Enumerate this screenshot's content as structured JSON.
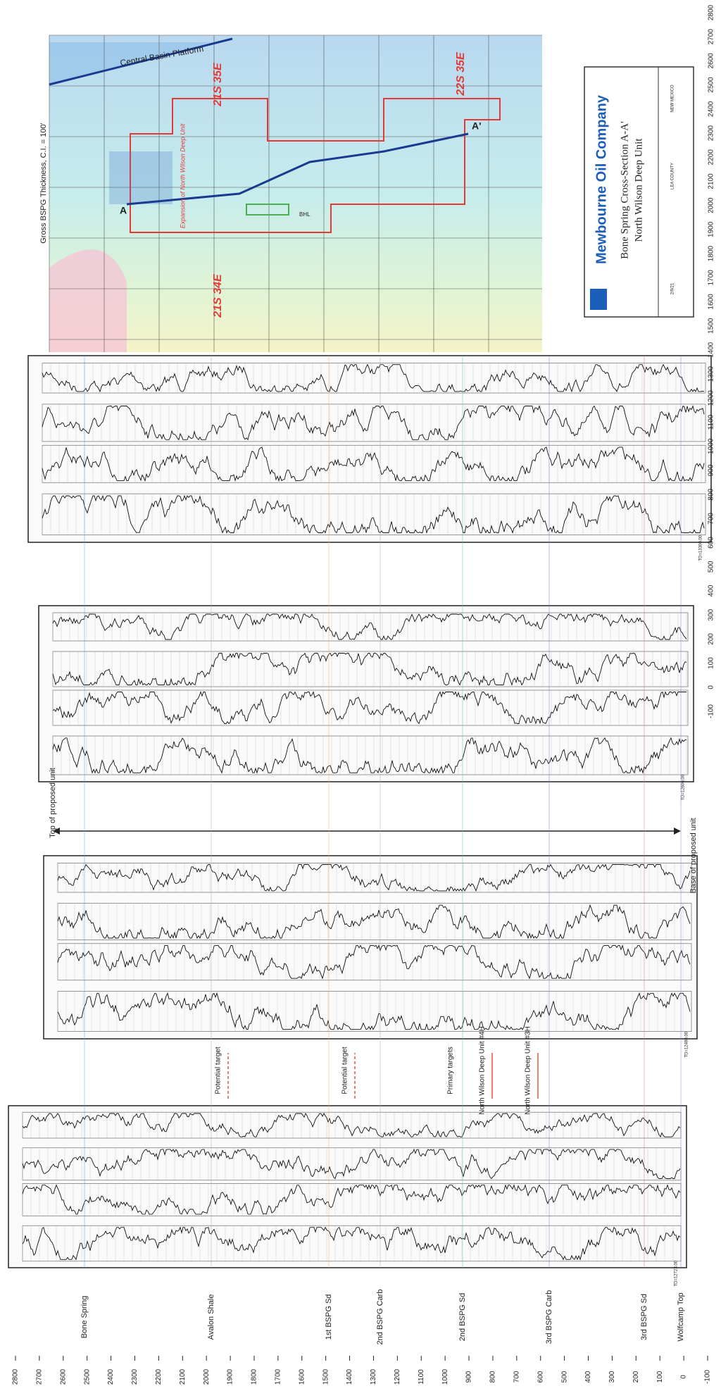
{
  "depth_scale": [
    2800,
    2700,
    2600,
    2500,
    2400,
    2300,
    2200,
    2100,
    2000,
    1900,
    1800,
    1700,
    1600,
    1500,
    1400,
    1300,
    1200,
    1100,
    1000,
    900,
    800,
    700,
    600,
    500,
    400,
    300,
    200,
    100,
    0,
    -100
  ],
  "map": {
    "legend": "Gross BSPG Thickness, C.I. = 100'",
    "platform": "Central Basin Platform",
    "twp1": "21S 35E",
    "twp2": "22S 35E",
    "twp3": "21S 34E",
    "expansion": "Expansion of North Wilson Deep Unit",
    "a_start": "A",
    "a_end": "A'",
    "bhl": "BHL"
  },
  "title_block": {
    "company": "Mewbourne Oil Company",
    "title": "Bone Spring Cross-Section A-A'",
    "subtitle": "North Wilson Deep Unit",
    "date": "2/9/21",
    "county": "LEA COUNTY",
    "state": "NEW MEXICO"
  },
  "wells": [
    {
      "td": "TD=13300.00"
    },
    {
      "td": "TD=12600.00"
    },
    {
      "td": "TD=12480.00"
    },
    {
      "td": "TD=12723.00"
    }
  ],
  "unit": {
    "top": "Top of proposed unit",
    "base": "Base of proposed unit"
  },
  "targets": [
    "Potential target",
    "Potential target",
    "Primary targets",
    "North Wilson Deep Unit #4H",
    "North Wilson Deep Unit #3H"
  ],
  "formations": [
    "Bone Spring",
    "Avalon Shale",
    "1st BSPG Sd",
    "2nd BSPG Carb",
    "2nd BSPG Sd",
    "3rd BSPG Carb",
    "3rd BSPG Sd",
    "Wolfcamp Top"
  ]
}
